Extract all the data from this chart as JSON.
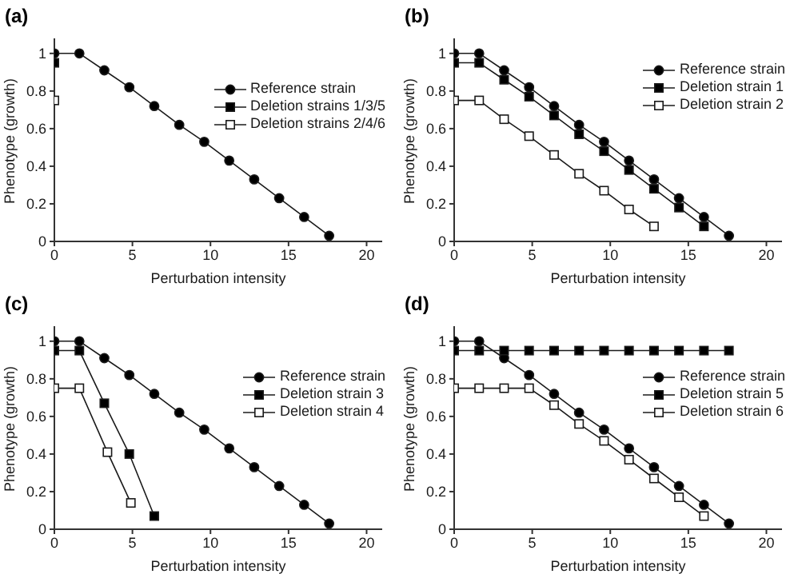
{
  "chart_data": [
    {
      "type": "line",
      "title": "(a)",
      "xlabel": "Perturbation intensity",
      "ylabel": "Phenotype (growth)",
      "xlim": [
        0,
        21
      ],
      "xticks": [
        0,
        5,
        10,
        15,
        20
      ],
      "ylim": [
        0,
        1.08
      ],
      "yticks": [
        0,
        0.2,
        0.4,
        0.6,
        0.8,
        1
      ],
      "legend": "right",
      "line_style": "solid",
      "series": [
        {
          "name": "Reference strain",
          "color": "#000000",
          "marker": "circle",
          "x": [
            0,
            1.6,
            3.2,
            4.8,
            6.4,
            8,
            9.6,
            11.2,
            12.8,
            14.4,
            16,
            17.6
          ],
          "values": [
            1,
            1,
            0.91,
            0.82,
            0.72,
            0.62,
            0.53,
            0.43,
            0.33,
            0.23,
            0.13,
            0.03
          ]
        },
        {
          "name": "Deletion strains 1/3/5",
          "color": "#000000",
          "marker": "square",
          "x": [
            0
          ],
          "values": [
            0.95
          ]
        },
        {
          "name": "Deletion strains 2/4/6",
          "color": "#ffffff",
          "marker": "square",
          "x": [
            0
          ],
          "values": [
            0.75
          ]
        }
      ]
    },
    {
      "type": "line",
      "title": "(b)",
      "xlabel": "Perturbation intensity",
      "ylabel": "Phenotype (growth)",
      "xlim": [
        0,
        21
      ],
      "xticks": [
        0,
        5,
        10,
        15,
        20
      ],
      "ylim": [
        0,
        1.08
      ],
      "yticks": [
        0,
        0.2,
        0.4,
        0.6,
        0.8,
        1
      ],
      "legend": "top right",
      "line_style": "solid",
      "series": [
        {
          "name": "Reference strain",
          "color": "#000000",
          "marker": "circle",
          "x": [
            0,
            1.6,
            3.2,
            4.8,
            6.4,
            8,
            9.6,
            11.2,
            12.8,
            14.4,
            16,
            17.6
          ],
          "values": [
            1,
            1,
            0.91,
            0.82,
            0.72,
            0.62,
            0.53,
            0.43,
            0.33,
            0.23,
            0.13,
            0.03
          ]
        },
        {
          "name": "Deletion strain 1",
          "color": "#000000",
          "marker": "square",
          "x": [
            0,
            1.6,
            3.2,
            4.8,
            6.4,
            8,
            9.6,
            11.2,
            12.8,
            14.4,
            16
          ],
          "values": [
            0.95,
            0.95,
            0.86,
            0.77,
            0.67,
            0.57,
            0.48,
            0.38,
            0.28,
            0.18,
            0.08
          ]
        },
        {
          "name": "Deletion strain 2",
          "color": "#ffffff",
          "marker": "square",
          "x": [
            0,
            1.6,
            3.2,
            4.8,
            6.4,
            8,
            9.6,
            11.2,
            12.8
          ],
          "values": [
            0.75,
            0.75,
            0.65,
            0.56,
            0.46,
            0.36,
            0.27,
            0.17,
            0.08
          ]
        }
      ]
    },
    {
      "type": "line",
      "title": "(c)",
      "xlabel": "Perturbation intensity",
      "ylabel": "Phenotype (growth)",
      "xlim": [
        0,
        21
      ],
      "xticks": [
        0,
        5,
        10,
        15,
        20
      ],
      "ylim": [
        0,
        1.08
      ],
      "yticks": [
        0,
        0.2,
        0.4,
        0.6,
        0.8,
        1
      ],
      "legend": "right",
      "line_style": "solid",
      "series": [
        {
          "name": "Reference strain",
          "color": "#000000",
          "marker": "circle",
          "x": [
            0,
            1.6,
            3.2,
            4.8,
            6.4,
            8,
            9.6,
            11.2,
            12.8,
            14.4,
            16,
            17.6
          ],
          "values": [
            1,
            1,
            0.91,
            0.82,
            0.72,
            0.62,
            0.53,
            0.43,
            0.33,
            0.23,
            0.13,
            0.03
          ]
        },
        {
          "name": "Deletion strain 3",
          "color": "#000000",
          "marker": "square",
          "x": [
            0,
            1.6,
            3.2,
            4.8,
            6.4
          ],
          "values": [
            0.95,
            0.95,
            0.67,
            0.4,
            0.07
          ]
        },
        {
          "name": "Deletion strain 4",
          "color": "#ffffff",
          "marker": "square",
          "x": [
            0,
            1.6,
            3.4,
            4.9
          ],
          "values": [
            0.75,
            0.75,
            0.41,
            0.14
          ]
        }
      ]
    },
    {
      "type": "line",
      "title": "(d)",
      "xlabel": "Perturbation intensity",
      "ylabel": "Phenotype (growth)",
      "xlim": [
        0,
        21
      ],
      "xticks": [
        0,
        5,
        10,
        15,
        20
      ],
      "ylim": [
        0,
        1.08
      ],
      "yticks": [
        0,
        0.2,
        0.4,
        0.6,
        0.8,
        1
      ],
      "legend": "right",
      "line_style": "solid",
      "series": [
        {
          "name": "Reference strain",
          "color": "#000000",
          "marker": "circle",
          "x": [
            0,
            1.6,
            3.2,
            4.8,
            6.4,
            8,
            9.6,
            11.2,
            12.8,
            14.4,
            16,
            17.6
          ],
          "values": [
            1,
            1,
            0.91,
            0.82,
            0.72,
            0.62,
            0.53,
            0.43,
            0.33,
            0.23,
            0.13,
            0.03
          ]
        },
        {
          "name": "Deletion strain 5",
          "color": "#000000",
          "marker": "square",
          "x": [
            0,
            1.6,
            3.2,
            4.8,
            6.4,
            8,
            9.6,
            11.2,
            12.8,
            14.4,
            16,
            17.6
          ],
          "values": [
            0.95,
            0.95,
            0.95,
            0.95,
            0.95,
            0.95,
            0.95,
            0.95,
            0.95,
            0.95,
            0.95,
            0.95
          ]
        },
        {
          "name": "Deletion strain 6",
          "color": "#ffffff",
          "marker": "square",
          "x": [
            0,
            1.6,
            3.2,
            4.8,
            6.4,
            8,
            9.6,
            11.2,
            12.8,
            14.4,
            16
          ],
          "values": [
            0.75,
            0.75,
            0.75,
            0.75,
            0.66,
            0.56,
            0.47,
            0.37,
            0.27,
            0.17,
            0.07
          ]
        }
      ]
    }
  ]
}
